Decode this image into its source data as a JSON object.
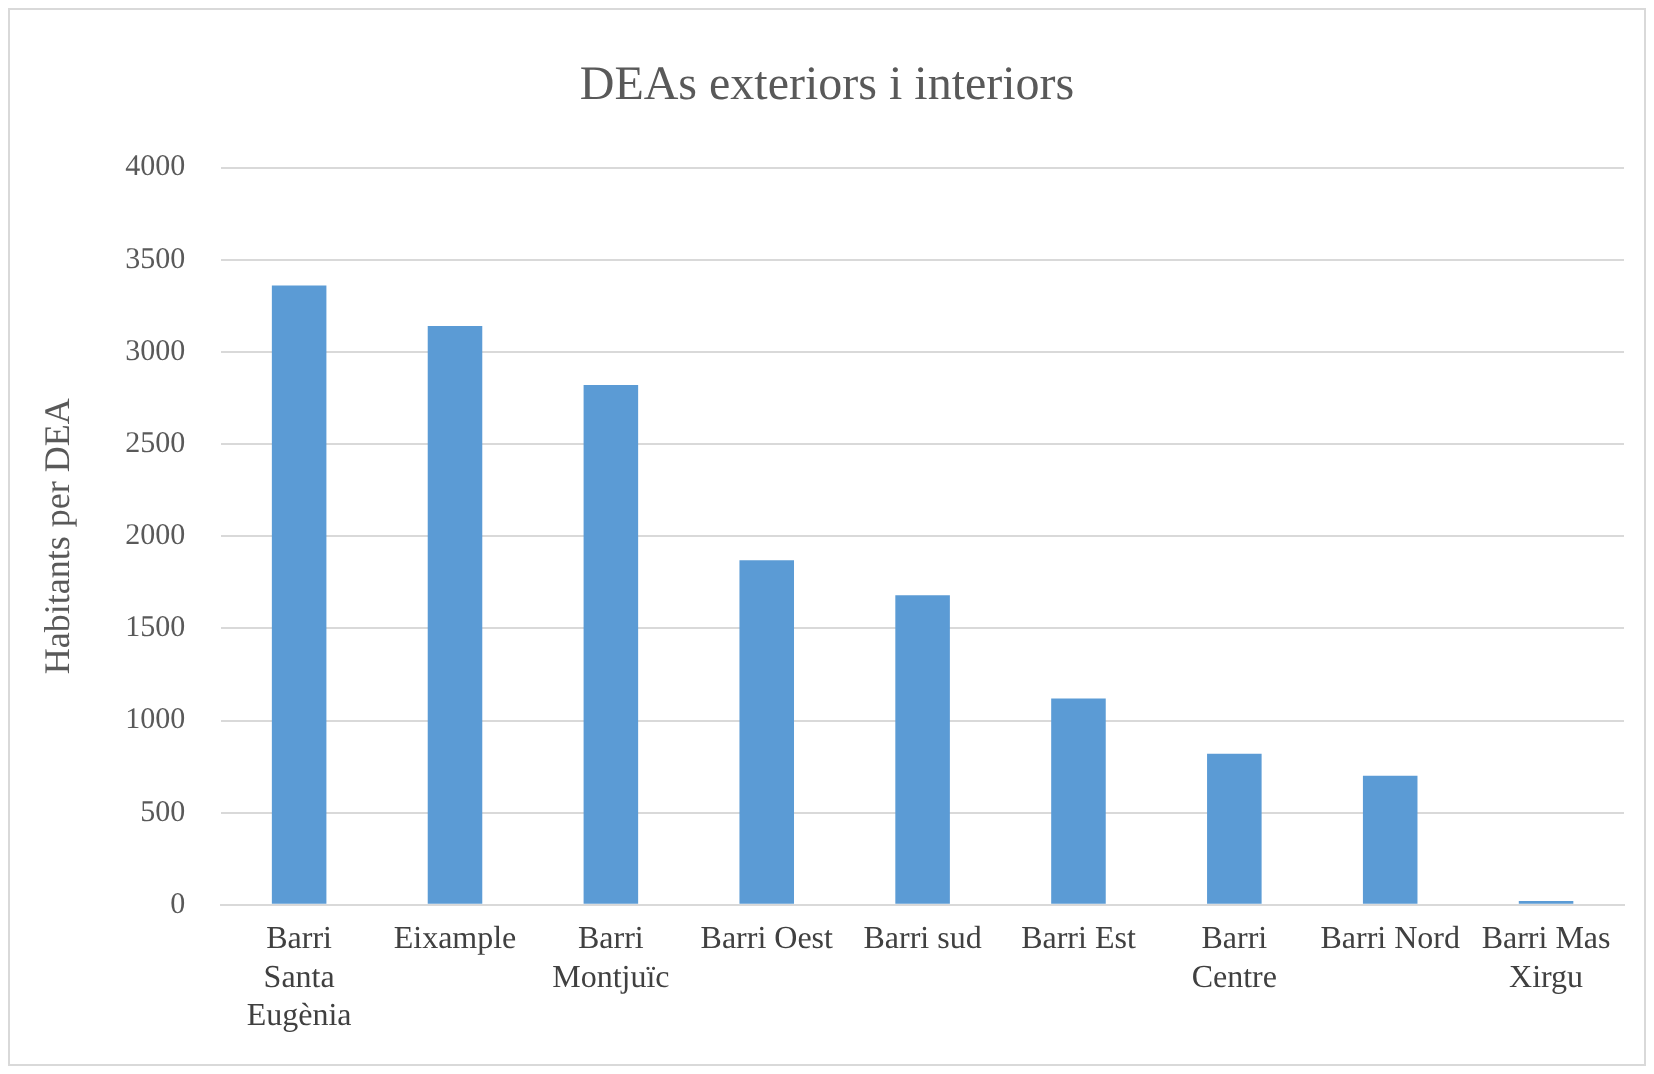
{
  "chart_data": {
    "type": "bar",
    "title": "DEAs exteriors i interiors",
    "ylabel": "Habitants per DEA",
    "categories": [
      "Barri Santa Eugènia",
      "Eixample",
      "Barri Montjuïc",
      "Barri Oest",
      "Barri sud",
      "Barri Est",
      "Barri Centre",
      "Barri Nord",
      "Barri Mas Xirgu"
    ],
    "values": [
      3360,
      3140,
      2820,
      1870,
      1680,
      1120,
      820,
      700,
      20
    ],
    "color": "#5b9bd5",
    "ylim": [
      0,
      4000
    ],
    "yticks": [
      0,
      500,
      1000,
      1500,
      2000,
      2500,
      3000,
      3500,
      4000
    ],
    "grid": "y",
    "legend": false
  }
}
